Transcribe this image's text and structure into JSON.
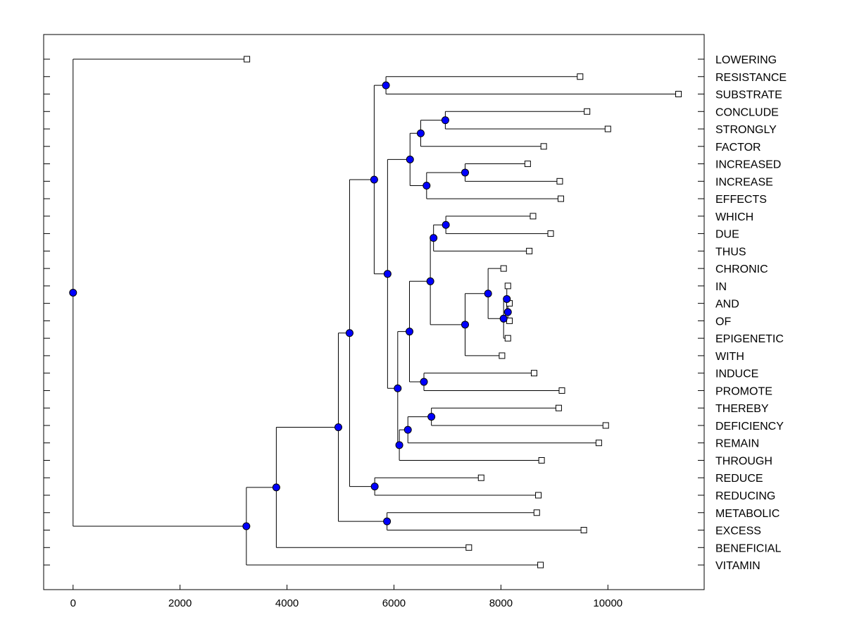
{
  "chart_data": {
    "type": "dendrogram",
    "title": "",
    "xlabel": "",
    "ylabel": "",
    "xlim": [
      -550,
      11800
    ],
    "x_ticks": [
      0,
      2000,
      4000,
      6000,
      8000,
      10000
    ],
    "grid": false,
    "leaves": [
      {
        "label": "LOWERING",
        "x": 3250
      },
      {
        "label": "RESISTANCE",
        "x": 9480
      },
      {
        "label": "SUBSTRATE",
        "x": 11320
      },
      {
        "label": "CONCLUDE",
        "x": 9610
      },
      {
        "label": "STRONGLY",
        "x": 10000
      },
      {
        "label": "FACTOR",
        "x": 8800
      },
      {
        "label": "INCREASED",
        "x": 8500
      },
      {
        "label": "INCREASE",
        "x": 9100
      },
      {
        "label": "EFFECTS",
        "x": 9120
      },
      {
        "label": "WHICH",
        "x": 8600
      },
      {
        "label": "DUE",
        "x": 8930
      },
      {
        "label": "THUS",
        "x": 8530
      },
      {
        "label": "CHRONIC",
        "x": 8050
      },
      {
        "label": "IN",
        "x": 8130
      },
      {
        "label": "AND",
        "x": 8160
      },
      {
        "label": "OF",
        "x": 8160
      },
      {
        "label": "EPIGENETIC",
        "x": 8130
      },
      {
        "label": "WITH",
        "x": 8020
      },
      {
        "label": "INDUCE",
        "x": 8620
      },
      {
        "label": "PROMOTE",
        "x": 9140
      },
      {
        "label": "THEREBY",
        "x": 9080
      },
      {
        "label": "DEFICIENCY",
        "x": 9960
      },
      {
        "label": "REMAIN",
        "x": 9830
      },
      {
        "label": "THROUGH",
        "x": 8760
      },
      {
        "label": "REDUCE",
        "x": 7630
      },
      {
        "label": "REDUCING",
        "x": 8700
      },
      {
        "label": "METABOLIC",
        "x": 8670
      },
      {
        "label": "EXCESS",
        "x": 9550
      },
      {
        "label": "BENEFICIAL",
        "x": 7400
      },
      {
        "label": "VITAMIN",
        "x": 8740
      }
    ],
    "merges": [
      {
        "id": "n_and_of",
        "x": 8130,
        "children": [
          "AND",
          "OF"
        ]
      },
      {
        "id": "n_in_andof",
        "x": 8110,
        "children": [
          "IN",
          "n_and_of"
        ]
      },
      {
        "id": "n_in_epi",
        "x": 8050,
        "children": [
          "n_in_andof",
          "EPIGENETIC"
        ]
      },
      {
        "id": "n_chronic",
        "x": 7760,
        "children": [
          "CHRONIC",
          "n_in_epi"
        ]
      },
      {
        "id": "n_with",
        "x": 7330,
        "children": [
          "n_chronic",
          "WITH"
        ]
      },
      {
        "id": "n_which_due",
        "x": 6970,
        "children": [
          "WHICH",
          "DUE"
        ]
      },
      {
        "id": "n_thus",
        "x": 6740,
        "children": [
          "n_which_due",
          "THUS"
        ]
      },
      {
        "id": "n_which_with",
        "x": 6680,
        "children": [
          "n_thus",
          "n_with"
        ]
      },
      {
        "id": "n_inc",
        "x": 7330,
        "children": [
          "INCREASED",
          "INCREASE"
        ]
      },
      {
        "id": "n_effects",
        "x": 6610,
        "children": [
          "n_inc",
          "EFFECTS"
        ]
      },
      {
        "id": "n_conc_str",
        "x": 6960,
        "children": [
          "CONCLUDE",
          "STRONGLY"
        ]
      },
      {
        "id": "n_factor",
        "x": 6500,
        "children": [
          "n_conc_str",
          "FACTOR"
        ]
      },
      {
        "id": "n_conclude_effects",
        "x": 6300,
        "children": [
          "n_factor",
          "n_effects"
        ]
      },
      {
        "id": "n_induce_promote",
        "x": 6560,
        "children": [
          "INDUCE",
          "PROMOTE"
        ]
      },
      {
        "id": "n_which_promote",
        "x": 6290,
        "children": [
          "n_which_with",
          "n_induce_promote"
        ]
      },
      {
        "id": "n_there_def",
        "x": 6700,
        "children": [
          "THEREBY",
          "DEFICIENCY"
        ]
      },
      {
        "id": "n_remain",
        "x": 6260,
        "children": [
          "n_there_def",
          "REMAIN"
        ]
      },
      {
        "id": "n_through",
        "x": 6100,
        "children": [
          "n_remain",
          "THROUGH"
        ]
      },
      {
        "id": "n_which_through",
        "x": 6070,
        "children": [
          "n_which_promote",
          "n_through"
        ]
      },
      {
        "id": "n_conclude_through",
        "x": 5880,
        "children": [
          "n_conclude_effects",
          "n_which_through"
        ]
      },
      {
        "id": "n_res_sub",
        "x": 5850,
        "children": [
          "RESISTANCE",
          "SUBSTRATE"
        ]
      },
      {
        "id": "n_res_through",
        "x": 5630,
        "children": [
          "n_res_sub",
          "n_conclude_through"
        ]
      },
      {
        "id": "n_reduce",
        "x": 5640,
        "children": [
          "REDUCE",
          "REDUCING"
        ]
      },
      {
        "id": "n_res_reducing",
        "x": 5170,
        "children": [
          "n_res_through",
          "n_reduce"
        ]
      },
      {
        "id": "n_met_exc",
        "x": 5870,
        "children": [
          "METABOLIC",
          "EXCESS"
        ]
      },
      {
        "id": "n_res_excess",
        "x": 4960,
        "children": [
          "n_res_reducing",
          "n_met_exc"
        ]
      },
      {
        "id": "n_beneficial",
        "x": 3800,
        "children": [
          "n_res_excess",
          "BENEFICIAL"
        ]
      },
      {
        "id": "n_vitamin",
        "x": 3240,
        "children": [
          "n_beneficial",
          "VITAMIN"
        ]
      },
      {
        "id": "n_root",
        "x": 0,
        "children": [
          "LOWERING",
          "n_vitamin"
        ]
      }
    ]
  }
}
